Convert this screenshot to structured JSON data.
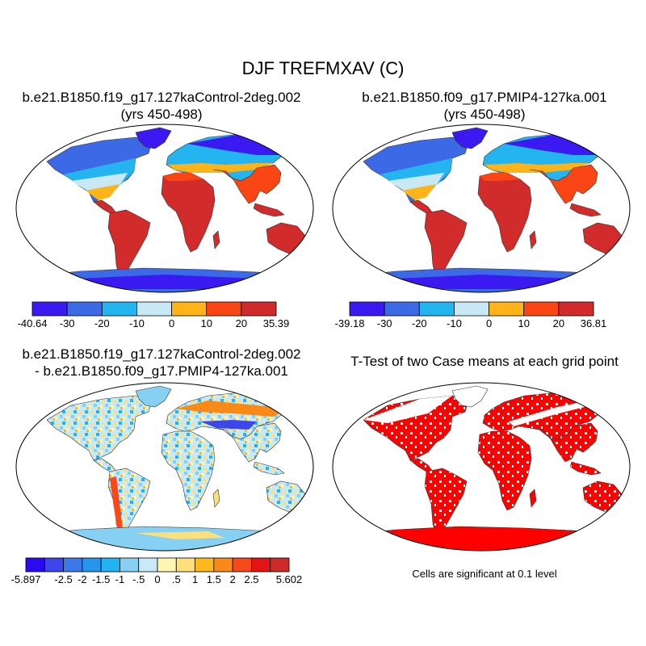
{
  "figure": {
    "title": "DJF TREFMXAV (C)"
  },
  "panels": [
    {
      "title_line1": "b.e21.B1850.f19_g17.127kaControl-2deg.002",
      "title_line2": "(yrs 450-498)",
      "colorbar": {
        "colors": [
          "#3a1af0",
          "#3c6ae6",
          "#24b4f0",
          "#c8e8f6",
          "#fcb418",
          "#fa4614",
          "#d22b2b"
        ],
        "labels": [
          "-40.64",
          "-30",
          "-20",
          "-10",
          "0",
          "10",
          "20",
          "35.39"
        ]
      }
    },
    {
      "title_line1": "b.e21.B1850.f09_g17.PMIP4-127ka.001",
      "title_line2": "(yrs 450-498)",
      "colorbar": {
        "colors": [
          "#3a1af0",
          "#3c6ae6",
          "#24b4f0",
          "#c8e8f6",
          "#fcb418",
          "#fa4614",
          "#d22b2b"
        ],
        "labels": [
          "-39.18",
          "-30",
          "-20",
          "-10",
          "0",
          "10",
          "20",
          "36.81"
        ]
      }
    },
    {
      "title_line1": "b.e21.B1850.f19_g17.127kaControl-2deg.002",
      "title_line2": "- b.e21.B1850.f09_g17.PMIP4-127ka.001",
      "colorbar": {
        "colors": [
          "#2a0af2",
          "#3c46ea",
          "#3c78ea",
          "#2596ec",
          "#22b4f2",
          "#86d0f4",
          "#c8eaf8",
          "#fcf6b0",
          "#fce07c",
          "#fcb81c",
          "#fa8a18",
          "#f84a18",
          "#e41414",
          "#cc2b2b"
        ],
        "labels": [
          "-5.897",
          "-2.5",
          "-2",
          "-1.5",
          "-1",
          "-.5",
          "0",
          ".5",
          "1",
          "1.5",
          "2",
          "2.5",
          "5.602"
        ]
      }
    },
    {
      "title_line1": "T-Test of two Case means at each grid point",
      "note": "Cells are significant at 0.1 level",
      "significant_color": "#ff0000"
    }
  ]
}
